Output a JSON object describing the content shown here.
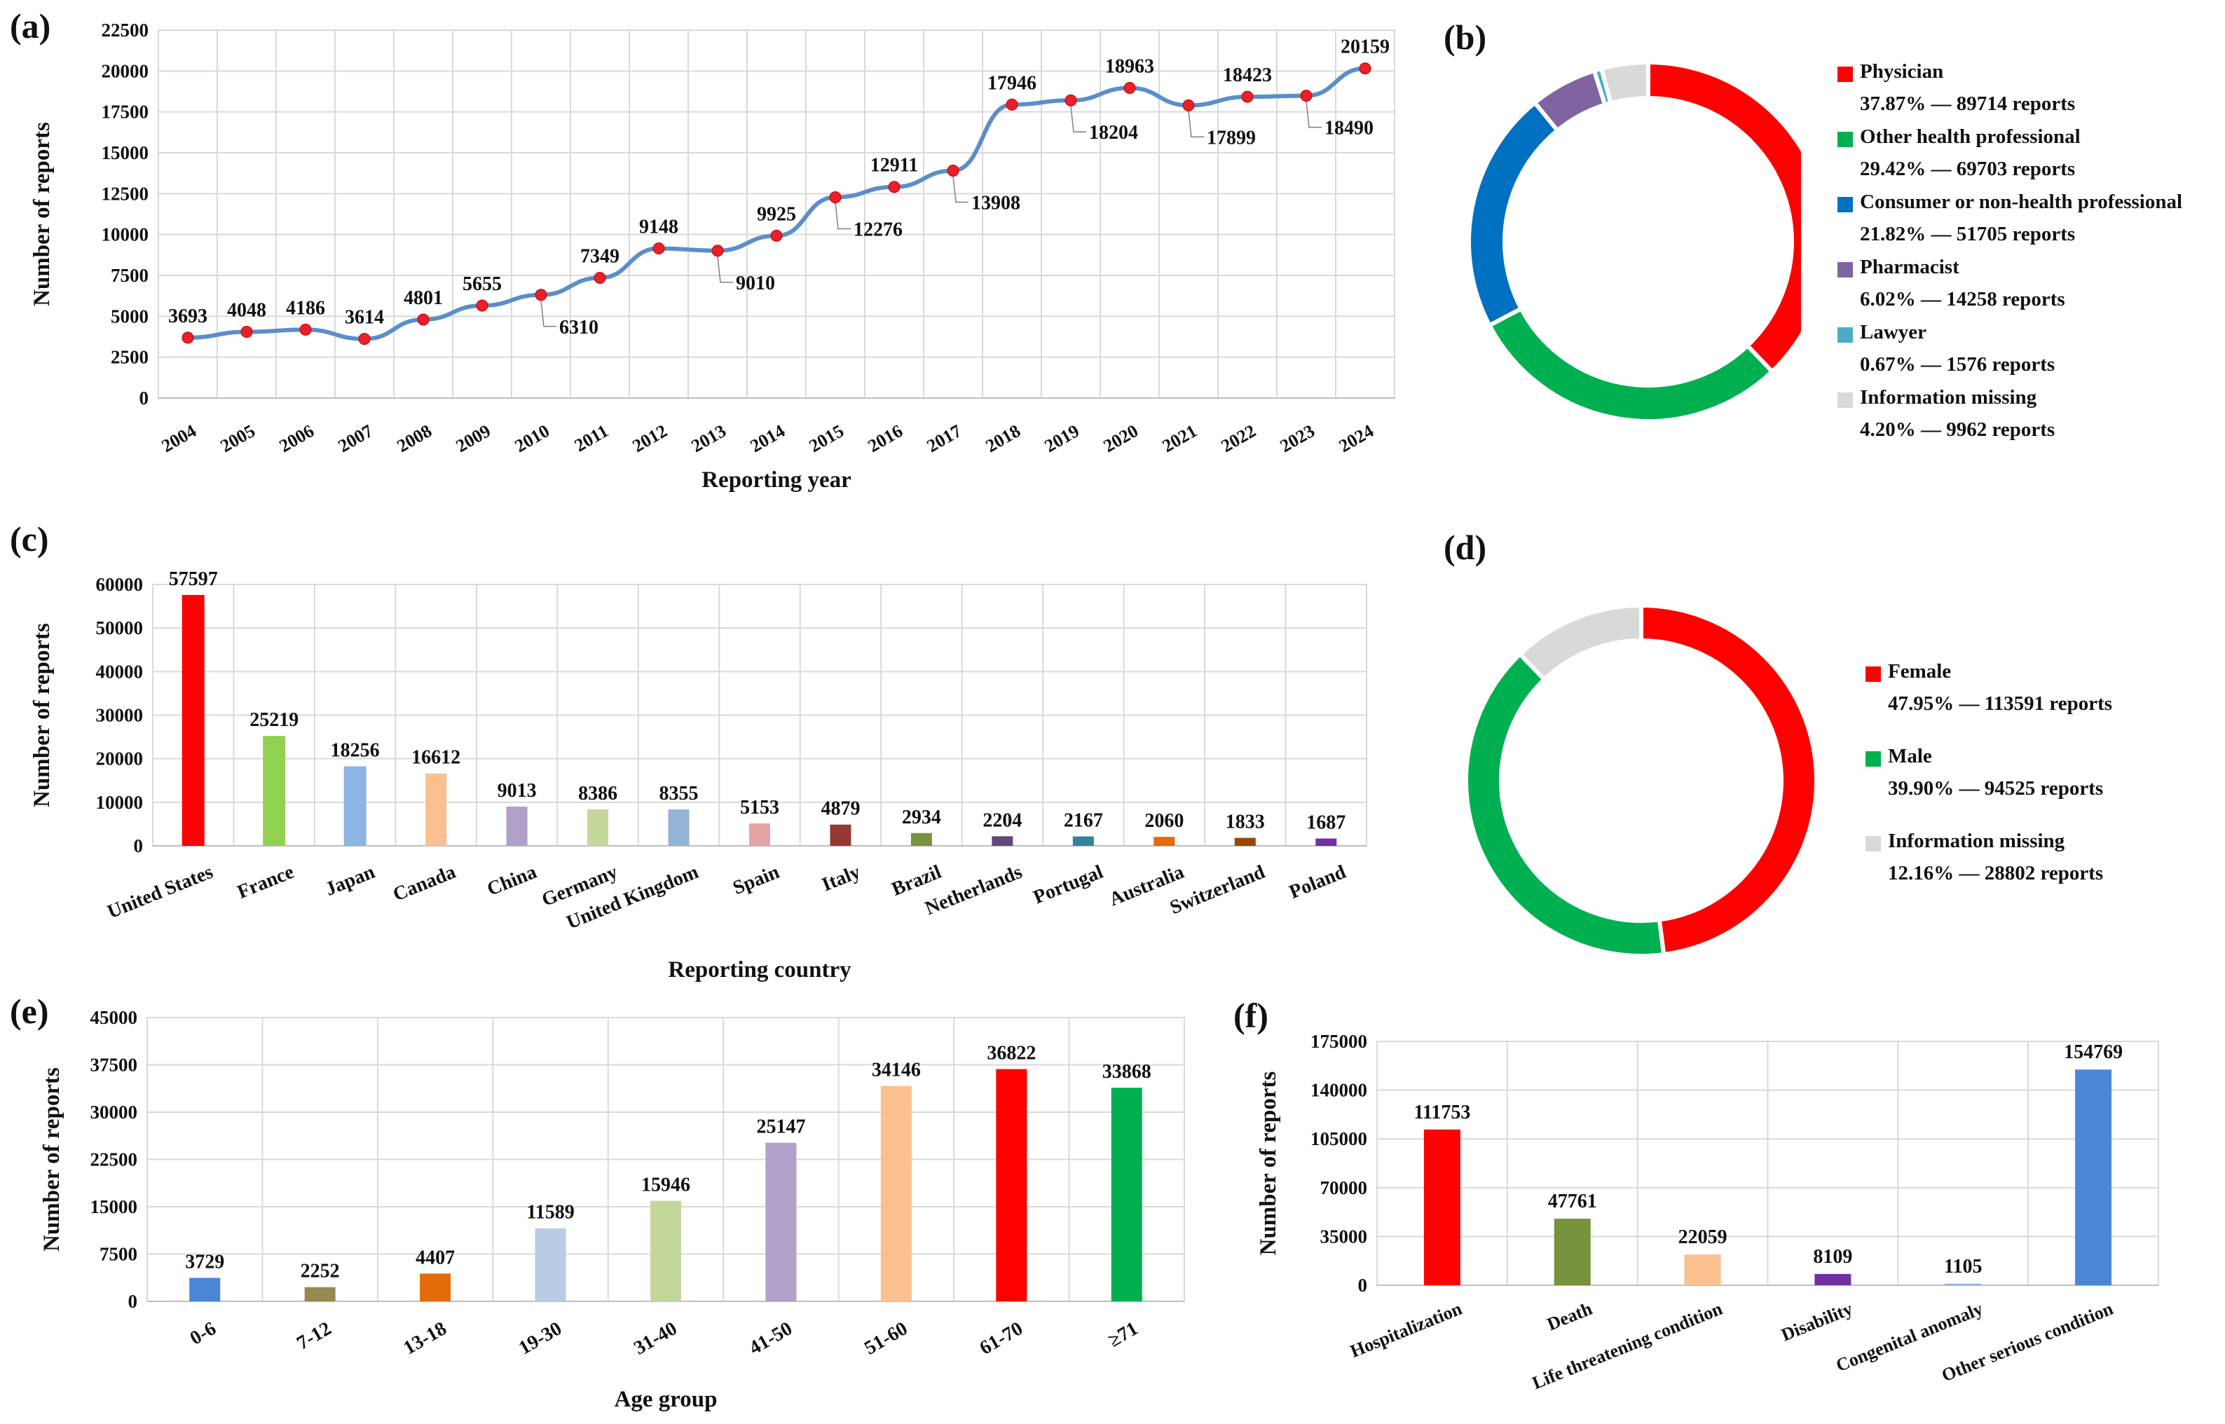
{
  "chart_data": [
    {
      "id": "a",
      "panel_label": "(a)",
      "type": "line",
      "title": "",
      "xlabel": "Reporting year",
      "ylabel": "Number of reports",
      "ylim": [
        0,
        22500
      ],
      "yticks": [
        0,
        2500,
        5000,
        7500,
        10000,
        12500,
        15000,
        17500,
        20000,
        22500
      ],
      "x": [
        "2004",
        "2005",
        "2006",
        "2007",
        "2008",
        "2009",
        "2010",
        "2011",
        "2012",
        "2013",
        "2014",
        "2015",
        "2016",
        "2017",
        "2018",
        "2019",
        "2020",
        "2021",
        "2022",
        "2023",
        "2024"
      ],
      "values": [
        3693,
        4048,
        4186,
        3614,
        4801,
        5655,
        6310,
        7349,
        9148,
        9010,
        9925,
        12276,
        12911,
        13908,
        17946,
        18204,
        18963,
        17899,
        18423,
        18490,
        20159
      ],
      "line_color": "#5B8EC9",
      "marker_color": "#E8202A"
    },
    {
      "id": "b",
      "panel_label": "(b)",
      "type": "pie",
      "donut": true,
      "slices": [
        {
          "label": "Physician",
          "percent": "37.87%",
          "reports": "89714 reports",
          "value": 37.87,
          "color": "#FF0000"
        },
        {
          "label": "Other health professional",
          "percent": "29.42%",
          "reports": "69703 reports",
          "value": 29.42,
          "color": "#00B050"
        },
        {
          "label": "Consumer or non-health professional",
          "percent": "21.82%",
          "reports": "51705 reports",
          "value": 21.82,
          "color": "#0070C0"
        },
        {
          "label": "Pharmacist",
          "percent": "6.02%",
          "reports": "14258 reports",
          "value": 6.02,
          "color": "#8064A2"
        },
        {
          "label": "Lawyer",
          "percent": "0.67%",
          "reports": "1576 reports",
          "value": 0.67,
          "color": "#4BACC6"
        },
        {
          "label": "Information missing",
          "percent": "4.20%",
          "reports": "9962 reports",
          "value": 4.2,
          "color": "#D9D9D9"
        }
      ],
      "separator": "—"
    },
    {
      "id": "c",
      "panel_label": "(c)",
      "type": "bar",
      "xlabel": "Reporting country",
      "ylabel": "Number of reports",
      "ylim": [
        0,
        60000
      ],
      "yticks": [
        0,
        10000,
        20000,
        30000,
        40000,
        50000,
        60000
      ],
      "categories": [
        "United States",
        "France",
        "Japan",
        "Canada",
        "China",
        "Germany",
        "United Kingdom",
        "Spain",
        "Italy",
        "Brazil",
        "Netherlands",
        "Portugal",
        "Australia",
        "Switzerland",
        "Poland"
      ],
      "values": [
        57597,
        25219,
        18256,
        16612,
        9013,
        8386,
        8355,
        5153,
        4879,
        2934,
        2204,
        2167,
        2060,
        1833,
        1687
      ],
      "colors": [
        "#FF0000",
        "#92D050",
        "#8DB4E2",
        "#FAC090",
        "#B1A0C7",
        "#C4D79B",
        "#95B3D7",
        "#E6A3A3",
        "#953735",
        "#77933C",
        "#60497A",
        "#31849B",
        "#E26B0A",
        "#974706",
        "#7030A0"
      ]
    },
    {
      "id": "d",
      "panel_label": "(d)",
      "type": "pie",
      "donut": true,
      "slices": [
        {
          "label": "Female",
          "percent": "47.95%",
          "reports": "113591 reports",
          "value": 47.95,
          "color": "#FF0000"
        },
        {
          "label": "Male",
          "percent": "39.90%",
          "reports": "94525 reports",
          "value": 39.9,
          "color": "#00B050"
        },
        {
          "label": "Information missing",
          "percent": "12.16%",
          "reports": "28802 reports",
          "value": 12.16,
          "color": "#D9D9D9"
        }
      ],
      "separator": "—"
    },
    {
      "id": "e",
      "panel_label": "(e)",
      "type": "bar",
      "xlabel": "Age group",
      "ylabel": "Number of reports",
      "ylim": [
        0,
        45000
      ],
      "yticks": [
        0,
        7500,
        15000,
        22500,
        30000,
        37500,
        45000
      ],
      "categories": [
        "0-6",
        "7-12",
        "13-18",
        "19-30",
        "31-40",
        "41-50",
        "51-60",
        "61-70",
        "≥71"
      ],
      "values": [
        3729,
        2252,
        4407,
        11589,
        15946,
        25147,
        34146,
        36822,
        33868
      ],
      "colors": [
        "#4A86D6",
        "#948A54",
        "#E26B0A",
        "#B8CCE4",
        "#C4D79B",
        "#B1A0C7",
        "#FAC090",
        "#FF0000",
        "#00B050"
      ]
    },
    {
      "id": "f",
      "panel_label": "(f)",
      "type": "bar",
      "xlabel": "",
      "ylabel": "Number of reports",
      "ylim": [
        0,
        175000
      ],
      "yticks": [
        0,
        35000,
        70000,
        105000,
        140000,
        175000
      ],
      "categories": [
        "Hospitalization",
        "Death",
        "Life threatening condition",
        "Disability",
        "Congenital anomaly",
        "Other serious condition"
      ],
      "values": [
        111753,
        47761,
        22059,
        8109,
        1105,
        154769
      ],
      "colors": [
        "#FF0000",
        "#77933C",
        "#FAC090",
        "#7030A0",
        "#8DB4E2",
        "#4A86D6"
      ]
    }
  ]
}
